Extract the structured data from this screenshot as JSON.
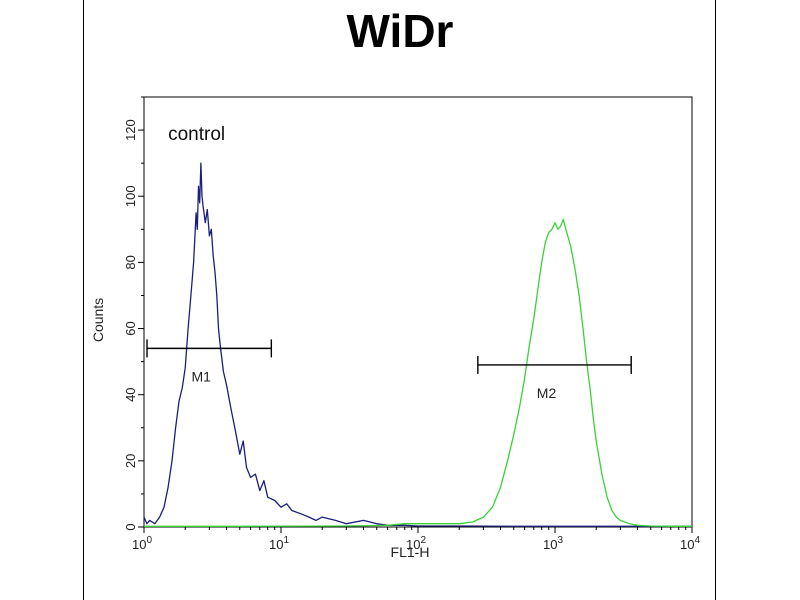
{
  "chart_data": {
    "type": "line",
    "title": "WiDr",
    "xlabel": "FL1-H",
    "ylabel": "Counts",
    "x_scale": "log",
    "xlim": [
      1,
      10000
    ],
    "ylim": [
      0,
      130
    ],
    "x_ticks": [
      {
        "value": 1,
        "base": "10",
        "exp": "0"
      },
      {
        "value": 10,
        "base": "10",
        "exp": "1"
      },
      {
        "value": 100,
        "base": "10",
        "exp": "2"
      },
      {
        "value": 1000,
        "base": "10",
        "exp": "3"
      },
      {
        "value": 10000,
        "base": "10",
        "exp": "4"
      }
    ],
    "y_ticks": [
      0,
      20,
      40,
      60,
      80,
      100,
      120
    ],
    "grid": false,
    "annotations": [
      {
        "text": "control",
        "x": 1.5,
        "y": 117
      }
    ],
    "markers": [
      {
        "name": "M1",
        "x_start": 1.0,
        "x_end": 8.5,
        "y": 54
      },
      {
        "name": "M2",
        "x_start": 260,
        "x_end": 3600,
        "y": 49
      }
    ],
    "series": [
      {
        "color": "#1a1f7a",
        "points": [
          [
            1.0,
            3
          ],
          [
            1.05,
            1
          ],
          [
            1.1,
            2
          ],
          [
            1.2,
            1
          ],
          [
            1.3,
            3
          ],
          [
            1.4,
            6
          ],
          [
            1.5,
            12
          ],
          [
            1.6,
            20
          ],
          [
            1.7,
            30
          ],
          [
            1.8,
            38
          ],
          [
            1.9,
            42
          ],
          [
            2.0,
            48
          ],
          [
            2.1,
            60
          ],
          [
            2.2,
            70
          ],
          [
            2.3,
            80
          ],
          [
            2.4,
            95
          ],
          [
            2.45,
            90
          ],
          [
            2.5,
            103
          ],
          [
            2.55,
            98
          ],
          [
            2.6,
            110
          ],
          [
            2.65,
            100
          ],
          [
            2.7,
            97
          ],
          [
            2.8,
            92
          ],
          [
            2.9,
            96
          ],
          [
            3.0,
            88
          ],
          [
            3.1,
            90
          ],
          [
            3.2,
            82
          ],
          [
            3.3,
            77
          ],
          [
            3.4,
            70
          ],
          [
            3.5,
            60
          ],
          [
            3.6,
            55
          ],
          [
            3.8,
            47
          ],
          [
            4.0,
            43
          ],
          [
            4.3,
            36
          ],
          [
            4.6,
            30
          ],
          [
            5.0,
            22
          ],
          [
            5.3,
            26
          ],
          [
            5.6,
            18
          ],
          [
            6.0,
            15
          ],
          [
            6.5,
            16
          ],
          [
            7.0,
            11
          ],
          [
            7.5,
            14
          ],
          [
            8.0,
            9
          ],
          [
            9.0,
            8
          ],
          [
            10,
            6
          ],
          [
            11,
            7
          ],
          [
            12,
            5
          ],
          [
            14,
            4
          ],
          [
            16,
            3
          ],
          [
            18,
            2
          ],
          [
            20,
            3
          ],
          [
            25,
            2
          ],
          [
            30,
            1
          ],
          [
            40,
            2
          ],
          [
            50,
            1
          ],
          [
            60,
            0.5
          ],
          [
            80,
            0.5
          ],
          [
            100,
            0.3
          ],
          [
            200,
            0.3
          ],
          [
            500,
            0.2
          ],
          [
            1000,
            0.2
          ],
          [
            2000,
            0.2
          ],
          [
            5000,
            0.2
          ],
          [
            10000,
            0.2
          ]
        ]
      },
      {
        "color": "#3ad13a",
        "points": [
          [
            1.0,
            0.2
          ],
          [
            5,
            0.2
          ],
          [
            30,
            0.3
          ],
          [
            60,
            0.5
          ],
          [
            80,
            1
          ],
          [
            100,
            1
          ],
          [
            150,
            1
          ],
          [
            200,
            1
          ],
          [
            250,
            1.5
          ],
          [
            300,
            3
          ],
          [
            350,
            6
          ],
          [
            400,
            12
          ],
          [
            450,
            20
          ],
          [
            500,
            28
          ],
          [
            550,
            36
          ],
          [
            600,
            45
          ],
          [
            650,
            55
          ],
          [
            700,
            63
          ],
          [
            750,
            72
          ],
          [
            800,
            80
          ],
          [
            850,
            86
          ],
          [
            900,
            89
          ],
          [
            950,
            90
          ],
          [
            1000,
            92
          ],
          [
            1050,
            90
          ],
          [
            1100,
            91
          ],
          [
            1150,
            93
          ],
          [
            1200,
            90
          ],
          [
            1300,
            85
          ],
          [
            1400,
            78
          ],
          [
            1500,
            70
          ],
          [
            1600,
            60
          ],
          [
            1700,
            50
          ],
          [
            1800,
            42
          ],
          [
            1900,
            33
          ],
          [
            2000,
            26
          ],
          [
            2200,
            16
          ],
          [
            2400,
            9
          ],
          [
            2600,
            5
          ],
          [
            2800,
            3
          ],
          [
            3000,
            2
          ],
          [
            3500,
            1
          ],
          [
            4000,
            0.5
          ],
          [
            5000,
            0.3
          ],
          [
            7000,
            0.2
          ],
          [
            10000,
            0.2
          ]
        ]
      }
    ]
  }
}
